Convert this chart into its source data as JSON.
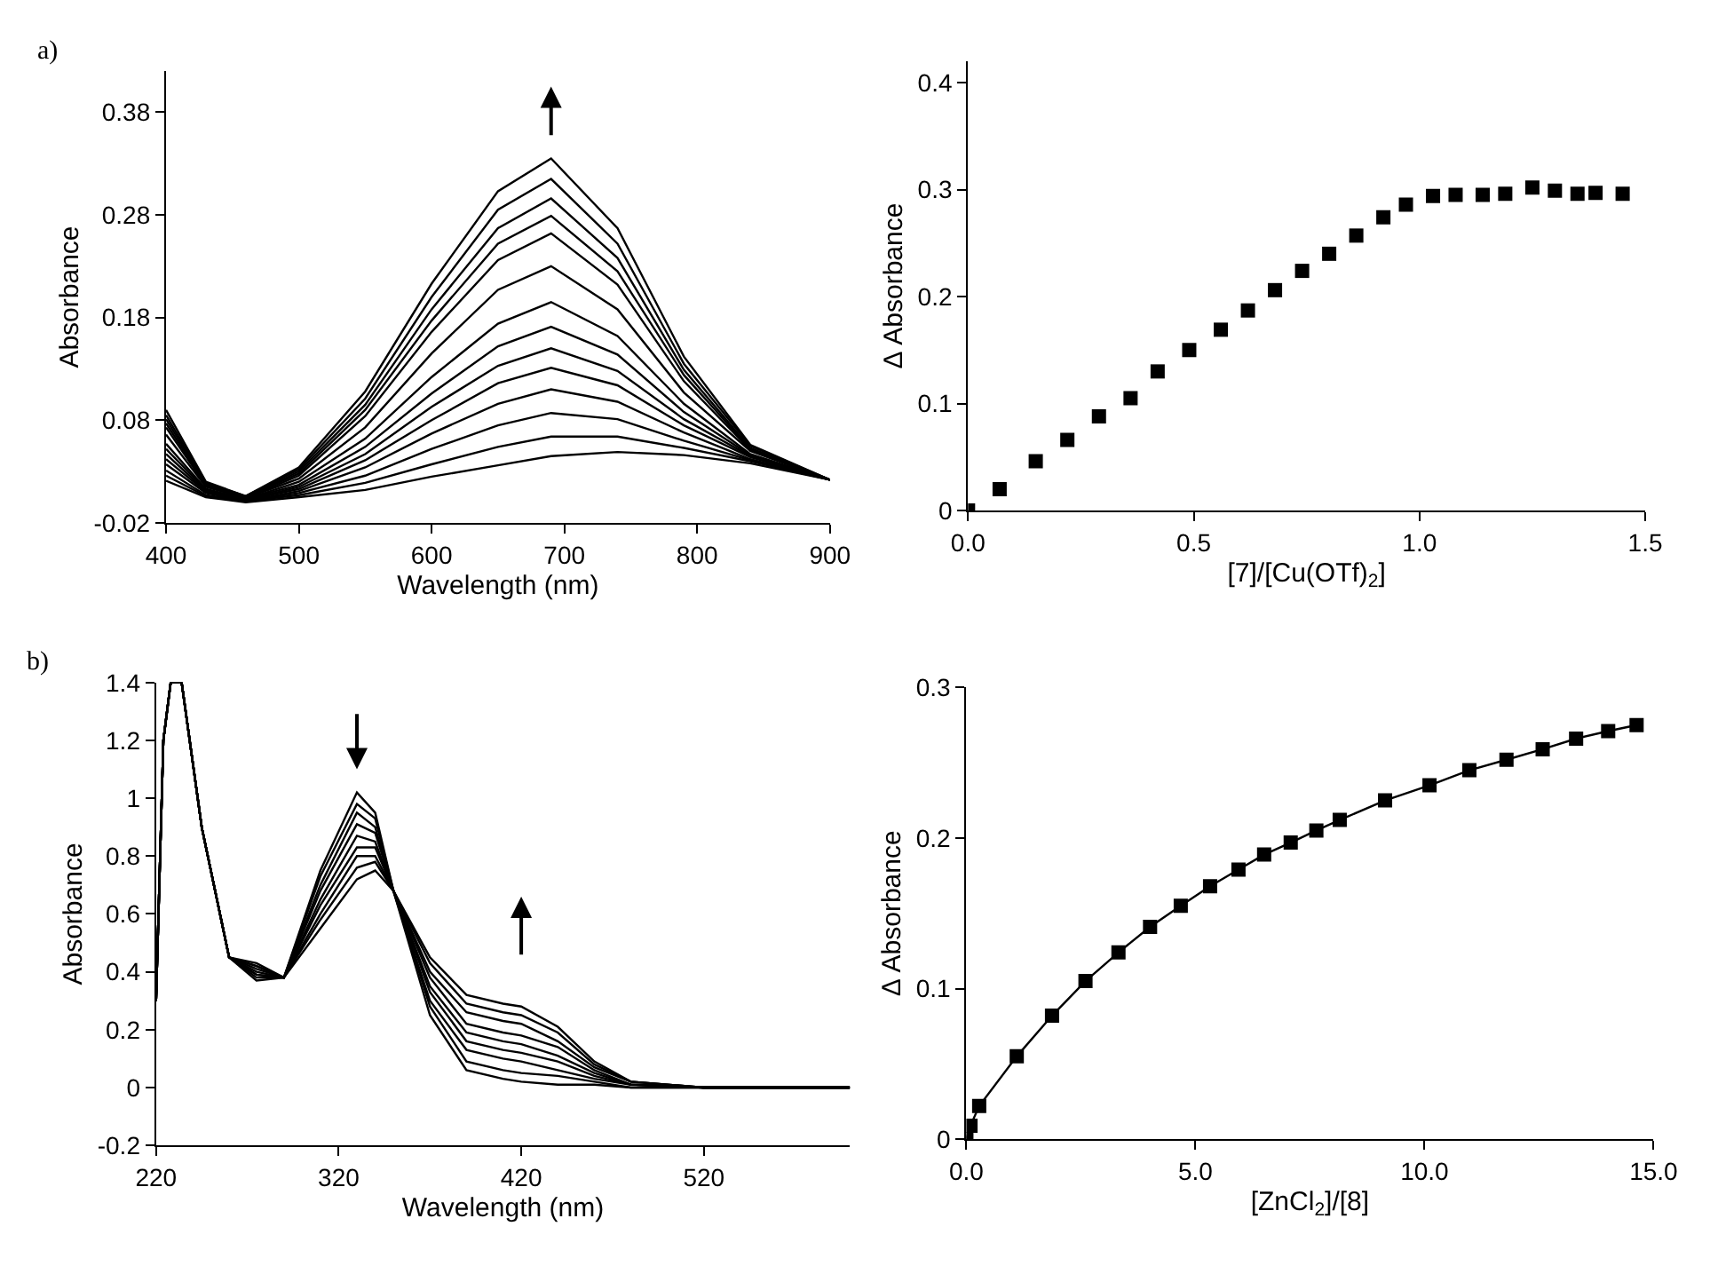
{
  "chart_data": [
    {
      "type": "line",
      "xlabel": "Wavelength (nm)",
      "ylabel": "Absorbance",
      "annotations": [
        "a)"
      ],
      "x": [
        400,
        430,
        460,
        500,
        550,
        600,
        650,
        690,
        740,
        790,
        840,
        900
      ],
      "xlim": [
        400,
        900
      ],
      "xticks": [
        400,
        500,
        600,
        700,
        800,
        900
      ],
      "ylim": [
        -0.02,
        0.42
      ],
      "yticks": [
        -0.02,
        0.08,
        0.18,
        0.28,
        0.38
      ],
      "series": [
        {
          "color": "#000000",
          "values": [
            0.09,
            0.02,
            0.006,
            0.034,
            0.108,
            0.213,
            0.303,
            0.335,
            0.267,
            0.142,
            0.056,
            0.022
          ]
        },
        {
          "color": "#000000",
          "values": [
            0.085,
            0.019,
            0.006,
            0.032,
            0.101,
            0.2,
            0.285,
            0.315,
            0.252,
            0.135,
            0.055,
            0.022
          ]
        },
        {
          "color": "#000000",
          "values": [
            0.081,
            0.018,
            0.005,
            0.03,
            0.095,
            0.188,
            0.267,
            0.296,
            0.238,
            0.129,
            0.053,
            0.022
          ]
        },
        {
          "color": "#000000",
          "values": [
            0.077,
            0.017,
            0.005,
            0.028,
            0.09,
            0.177,
            0.252,
            0.279,
            0.225,
            0.124,
            0.052,
            0.022
          ]
        },
        {
          "color": "#000000",
          "values": [
            0.073,
            0.016,
            0.004,
            0.026,
            0.084,
            0.166,
            0.236,
            0.262,
            0.212,
            0.118,
            0.051,
            0.022
          ]
        },
        {
          "color": "#000000",
          "values": [
            0.066,
            0.015,
            0.004,
            0.023,
            0.073,
            0.145,
            0.207,
            0.23,
            0.188,
            0.107,
            0.05,
            0.022
          ]
        },
        {
          "color": "#000000",
          "values": [
            0.057,
            0.013,
            0.003,
            0.02,
            0.062,
            0.122,
            0.174,
            0.195,
            0.162,
            0.096,
            0.047,
            0.022
          ]
        },
        {
          "color": "#000000",
          "values": [
            0.052,
            0.012,
            0.003,
            0.017,
            0.054,
            0.106,
            0.152,
            0.171,
            0.144,
            0.088,
            0.046,
            0.022
          ]
        },
        {
          "color": "#000000",
          "values": [
            0.047,
            0.011,
            0.002,
            0.015,
            0.047,
            0.093,
            0.133,
            0.15,
            0.128,
            0.081,
            0.045,
            0.022
          ]
        },
        {
          "color": "#000000",
          "values": [
            0.042,
            0.01,
            0.002,
            0.013,
            0.041,
            0.08,
            0.116,
            0.131,
            0.114,
            0.075,
            0.044,
            0.022
          ]
        },
        {
          "color": "#000000",
          "values": [
            0.037,
            0.009,
            0.001,
            0.011,
            0.034,
            0.067,
            0.096,
            0.11,
            0.098,
            0.068,
            0.042,
            0.022
          ]
        },
        {
          "color": "#000000",
          "values": [
            0.031,
            0.007,
            0.001,
            0.009,
            0.026,
            0.052,
            0.075,
            0.087,
            0.081,
            0.06,
            0.041,
            0.022
          ]
        },
        {
          "color": "#000000",
          "values": [
            0.026,
            0.006,
            0.001,
            0.007,
            0.019,
            0.037,
            0.054,
            0.064,
            0.064,
            0.053,
            0.04,
            0.022
          ]
        },
        {
          "color": "#000000",
          "values": [
            0.021,
            0.005,
            0.0,
            0.005,
            0.012,
            0.025,
            0.036,
            0.045,
            0.049,
            0.046,
            0.038,
            0.022
          ]
        }
      ]
    },
    {
      "type": "scatter",
      "xlabel": "[7]/[Cu(OTf)$_{2}$]",
      "ylabel": "Δ Absorbance",
      "marker": "square",
      "x": [
        0,
        0.07,
        0.15,
        0.22,
        0.29,
        0.36,
        0.42,
        0.49,
        0.56,
        0.62,
        0.68,
        0.74,
        0.8,
        0.86,
        0.92,
        0.97,
        1.03,
        1.08,
        1.14,
        1.19,
        1.25,
        1.3,
        1.35,
        1.39,
        1.45
      ],
      "xlim": [
        0,
        1.5
      ],
      "xticks": [
        {
          "value": 0,
          "label": "0.0"
        },
        0.5,
        {
          "value": 1,
          "label": "1.0"
        },
        1.5
      ],
      "ylim": [
        0,
        0.42
      ],
      "yticks": [
        0,
        0.1,
        0.2,
        0.3,
        0.4
      ],
      "series": [
        {
          "color": "#000000",
          "values": [
            0,
            0.02,
            0.046,
            0.066,
            0.088,
            0.105,
            0.13,
            0.15,
            0.169,
            0.187,
            0.206,
            0.224,
            0.24,
            0.257,
            0.274,
            0.286,
            0.294,
            0.295,
            0.295,
            0.296,
            0.302,
            0.299,
            0.296,
            0.297,
            0.296
          ]
        }
      ]
    },
    {
      "type": "line",
      "xlabel": "Wavelength (nm)",
      "ylabel": "Absorbance",
      "annotations": [
        "b)"
      ],
      "x": [
        220,
        224,
        228,
        234,
        245,
        260,
        275,
        290,
        310,
        330,
        340,
        350,
        370,
        390,
        410,
        420,
        440,
        460,
        480,
        520,
        600
      ],
      "xlim": [
        220,
        600
      ],
      "xticks": [
        220,
        320,
        420,
        520
      ],
      "ylim": [
        -0.2,
        1.4
      ],
      "yticks": [
        -0.2,
        0,
        0.2,
        0.4,
        0.6,
        0.8,
        1,
        1.2,
        1.4
      ],
      "series": [
        {
          "color": "#000000",
          "values": [
            0.3,
            1.2,
            1.4,
            1.4,
            0.9,
            0.45,
            0.43,
            0.38,
            0.75,
            1.02,
            0.95,
            0.68,
            0.25,
            0.06,
            0.03,
            0.02,
            0.01,
            0.01,
            0,
            0,
            0
          ]
        },
        {
          "color": "#000000",
          "values": [
            0.3,
            1.2,
            1.4,
            1.4,
            0.9,
            0.45,
            0.42,
            0.38,
            0.73,
            0.98,
            0.93,
            0.68,
            0.28,
            0.09,
            0.06,
            0.05,
            0.04,
            0.02,
            0,
            0,
            0
          ]
        },
        {
          "color": "#000000",
          "values": [
            0.3,
            1.2,
            1.4,
            1.4,
            0.9,
            0.45,
            0.42,
            0.38,
            0.7,
            0.95,
            0.9,
            0.68,
            0.3,
            0.13,
            0.1,
            0.09,
            0.06,
            0.03,
            0.01,
            0,
            0
          ]
        },
        {
          "color": "#000000",
          "values": [
            0.3,
            1.2,
            1.4,
            1.4,
            0.9,
            0.45,
            0.41,
            0.38,
            0.68,
            0.91,
            0.88,
            0.68,
            0.33,
            0.16,
            0.13,
            0.12,
            0.09,
            0.04,
            0.01,
            0,
            0
          ]
        },
        {
          "color": "#000000",
          "values": [
            0.3,
            1.2,
            1.4,
            1.4,
            0.9,
            0.45,
            0.4,
            0.38,
            0.65,
            0.87,
            0.85,
            0.68,
            0.35,
            0.19,
            0.16,
            0.15,
            0.11,
            0.05,
            0.01,
            0,
            0
          ]
        },
        {
          "color": "#000000",
          "values": [
            0.3,
            1.2,
            1.4,
            1.4,
            0.9,
            0.45,
            0.39,
            0.38,
            0.63,
            0.83,
            0.83,
            0.68,
            0.38,
            0.22,
            0.19,
            0.18,
            0.14,
            0.06,
            0.01,
            0,
            0
          ]
        },
        {
          "color": "#000000",
          "values": [
            0.3,
            1.2,
            1.4,
            1.4,
            0.9,
            0.45,
            0.39,
            0.38,
            0.6,
            0.8,
            0.8,
            0.68,
            0.4,
            0.26,
            0.23,
            0.22,
            0.16,
            0.07,
            0.02,
            0,
            0
          ]
        },
        {
          "color": "#000000",
          "values": [
            0.3,
            1.2,
            1.4,
            1.4,
            0.9,
            0.45,
            0.38,
            0.38,
            0.58,
            0.76,
            0.78,
            0.68,
            0.43,
            0.29,
            0.26,
            0.25,
            0.19,
            0.08,
            0.02,
            0,
            0
          ]
        },
        {
          "color": "#000000",
          "values": [
            0.3,
            1.2,
            1.4,
            1.4,
            0.9,
            0.45,
            0.37,
            0.38,
            0.55,
            0.72,
            0.75,
            0.68,
            0.45,
            0.32,
            0.29,
            0.28,
            0.21,
            0.09,
            0.02,
            0,
            0
          ]
        }
      ]
    },
    {
      "type": "line",
      "xlabel": "[ZnCl$_{2}$]/[8]",
      "ylabel": "Δ Absorbance",
      "marker": "square",
      "x": [
        0,
        0.09,
        0.28,
        1.1,
        1.87,
        2.6,
        3.32,
        4.01,
        4.68,
        5.32,
        5.94,
        6.5,
        7.08,
        7.64,
        8.15,
        9.14,
        10.11,
        10.98,
        11.79,
        12.58,
        13.31,
        14.01,
        14.63
      ],
      "xlim": [
        0,
        15
      ],
      "xticks": [
        {
          "value": 0,
          "label": "0.0"
        },
        {
          "value": 5,
          "label": "5.0"
        },
        {
          "value": 10,
          "label": "10.0"
        },
        {
          "value": 15,
          "label": "15.0"
        }
      ],
      "ylim": [
        0,
        0.3
      ],
      "yticks": [
        0,
        0.1,
        0.2,
        0.3
      ],
      "series": [
        {
          "color": "#000000",
          "values": [
            0,
            0.009,
            0.022,
            0.055,
            0.082,
            0.105,
            0.124,
            0.141,
            0.155,
            0.168,
            0.179,
            0.189,
            0.197,
            0.205,
            0.212,
            0.225,
            0.235,
            0.245,
            0.252,
            0.259,
            0.266,
            0.271,
            0.275
          ]
        }
      ]
    }
  ]
}
